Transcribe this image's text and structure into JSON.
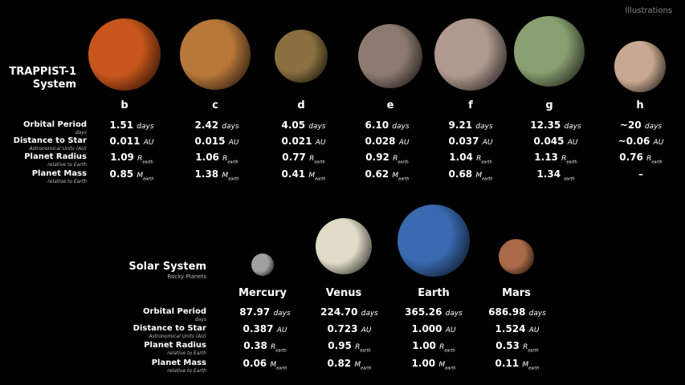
{
  "corner_label": "Illustrations",
  "trappist": {
    "title": "TRAPPIST-1",
    "title2": "System",
    "row_labels": [
      {
        "main": "Orbital Period",
        "sub": "days"
      },
      {
        "main": "Distance to Star",
        "sub": "Astronomical Units (AU)"
      },
      {
        "main": "Planet Radius",
        "sub": "relative to Earth"
      },
      {
        "main": "Planet Mass",
        "sub": "relative to Earth"
      }
    ],
    "planets": [
      {
        "name": "b",
        "color": "#c8561c",
        "values": [
          {
            "n": "1.51",
            "u": "days"
          },
          {
            "n": "0.011",
            "u": "AU"
          },
          {
            "n": "1.09",
            "u": "R",
            "s": "earth"
          },
          {
            "n": "0.85",
            "u": "M",
            "s": "earth"
          }
        ]
      },
      {
        "name": "c",
        "color": "#b8783a",
        "values": [
          {
            "n": "2.42",
            "u": "days"
          },
          {
            "n": "0.015",
            "u": "AU"
          },
          {
            "n": "1.06",
            "u": "R",
            "s": "earth"
          },
          {
            "n": "1.38",
            "u": "M",
            "s": "earth"
          }
        ]
      },
      {
        "name": "d",
        "color": "#8a7040",
        "values": [
          {
            "n": "4.05",
            "u": "days"
          },
          {
            "n": "0.021",
            "u": "AU"
          },
          {
            "n": "0.77",
            "u": "R",
            "s": "earth"
          },
          {
            "n": "0.41",
            "u": "M",
            "s": "earth"
          }
        ]
      },
      {
        "name": "e",
        "color": "#8c7a70",
        "values": [
          {
            "n": "6.10",
            "u": "days"
          },
          {
            "n": "0.028",
            "u": "AU"
          },
          {
            "n": "0.92",
            "u": "R",
            "s": "earth"
          },
          {
            "n": "0.62",
            "u": "M",
            "s": "earth"
          }
        ]
      },
      {
        "name": "f",
        "color": "#b09a90",
        "values": [
          {
            "n": "9.21",
            "u": "days"
          },
          {
            "n": "0.037",
            "u": "AU"
          },
          {
            "n": "1.04",
            "u": "R",
            "s": "earth"
          },
          {
            "n": "0.68",
            "u": "M",
            "s": "earth"
          }
        ]
      },
      {
        "name": "g",
        "color": "#8aa070",
        "values": [
          {
            "n": "12.35",
            "u": "days"
          },
          {
            "n": "0.045",
            "u": "AU"
          },
          {
            "n": "1.13",
            "u": "R",
            "s": "earth"
          },
          {
            "n": "1.34",
            "u": "",
            "s": "earth"
          }
        ]
      },
      {
        "name": "h",
        "color": "#c8a890",
        "values": [
          {
            "n": "~20",
            "u": "days"
          },
          {
            "n": "~0.06",
            "u": "AU"
          },
          {
            "n": "0.76",
            "u": "R",
            "s": "earth"
          },
          {
            "n": "–",
            "u": ""
          }
        ]
      }
    ]
  },
  "solar": {
    "title": "Solar System",
    "subtitle": "Rocky Planets",
    "row_labels": [
      {
        "main": "Orbital Period",
        "sub": "days"
      },
      {
        "main": "Distance to Star",
        "sub": "Astronomical Units (AU)"
      },
      {
        "main": "Planet Radius",
        "sub": "relative to Earth"
      },
      {
        "main": "Planet Mass",
        "sub": "relative to Earth"
      }
    ],
    "planets": [
      {
        "name": "Mercury",
        "color": "#a0a0a0",
        "values": [
          {
            "n": "87.97",
            "u": "days"
          },
          {
            "n": "0.387",
            "u": "AU"
          },
          {
            "n": "0.38",
            "u": "R",
            "s": "earth"
          },
          {
            "n": "0.06",
            "u": "M",
            "s": "earth"
          }
        ]
      },
      {
        "name": "Venus",
        "color": "#e0dcc8",
        "values": [
          {
            "n": "224.70",
            "u": "days"
          },
          {
            "n": "0.723",
            "u": "AU"
          },
          {
            "n": "0.95",
            "u": "R",
            "s": "earth"
          },
          {
            "n": "0.82",
            "u": "M",
            "s": "earth"
          }
        ]
      },
      {
        "name": "Earth",
        "color": "#3a6ab0",
        "values": [
          {
            "n": "365.26",
            "u": "days"
          },
          {
            "n": "1.000",
            "u": "AU"
          },
          {
            "n": "1.00",
            "u": "R",
            "s": "earth"
          },
          {
            "n": "1.00",
            "u": "M",
            "s": "earth"
          }
        ]
      },
      {
        "name": "Mars",
        "color": "#a86a48",
        "values": [
          {
            "n": "686.98",
            "u": "days"
          },
          {
            "n": "1.524",
            "u": "AU"
          },
          {
            "n": "0.53",
            "u": "R",
            "s": "earth"
          },
          {
            "n": "0.11",
            "u": "M",
            "s": "earth"
          }
        ]
      }
    ]
  }
}
